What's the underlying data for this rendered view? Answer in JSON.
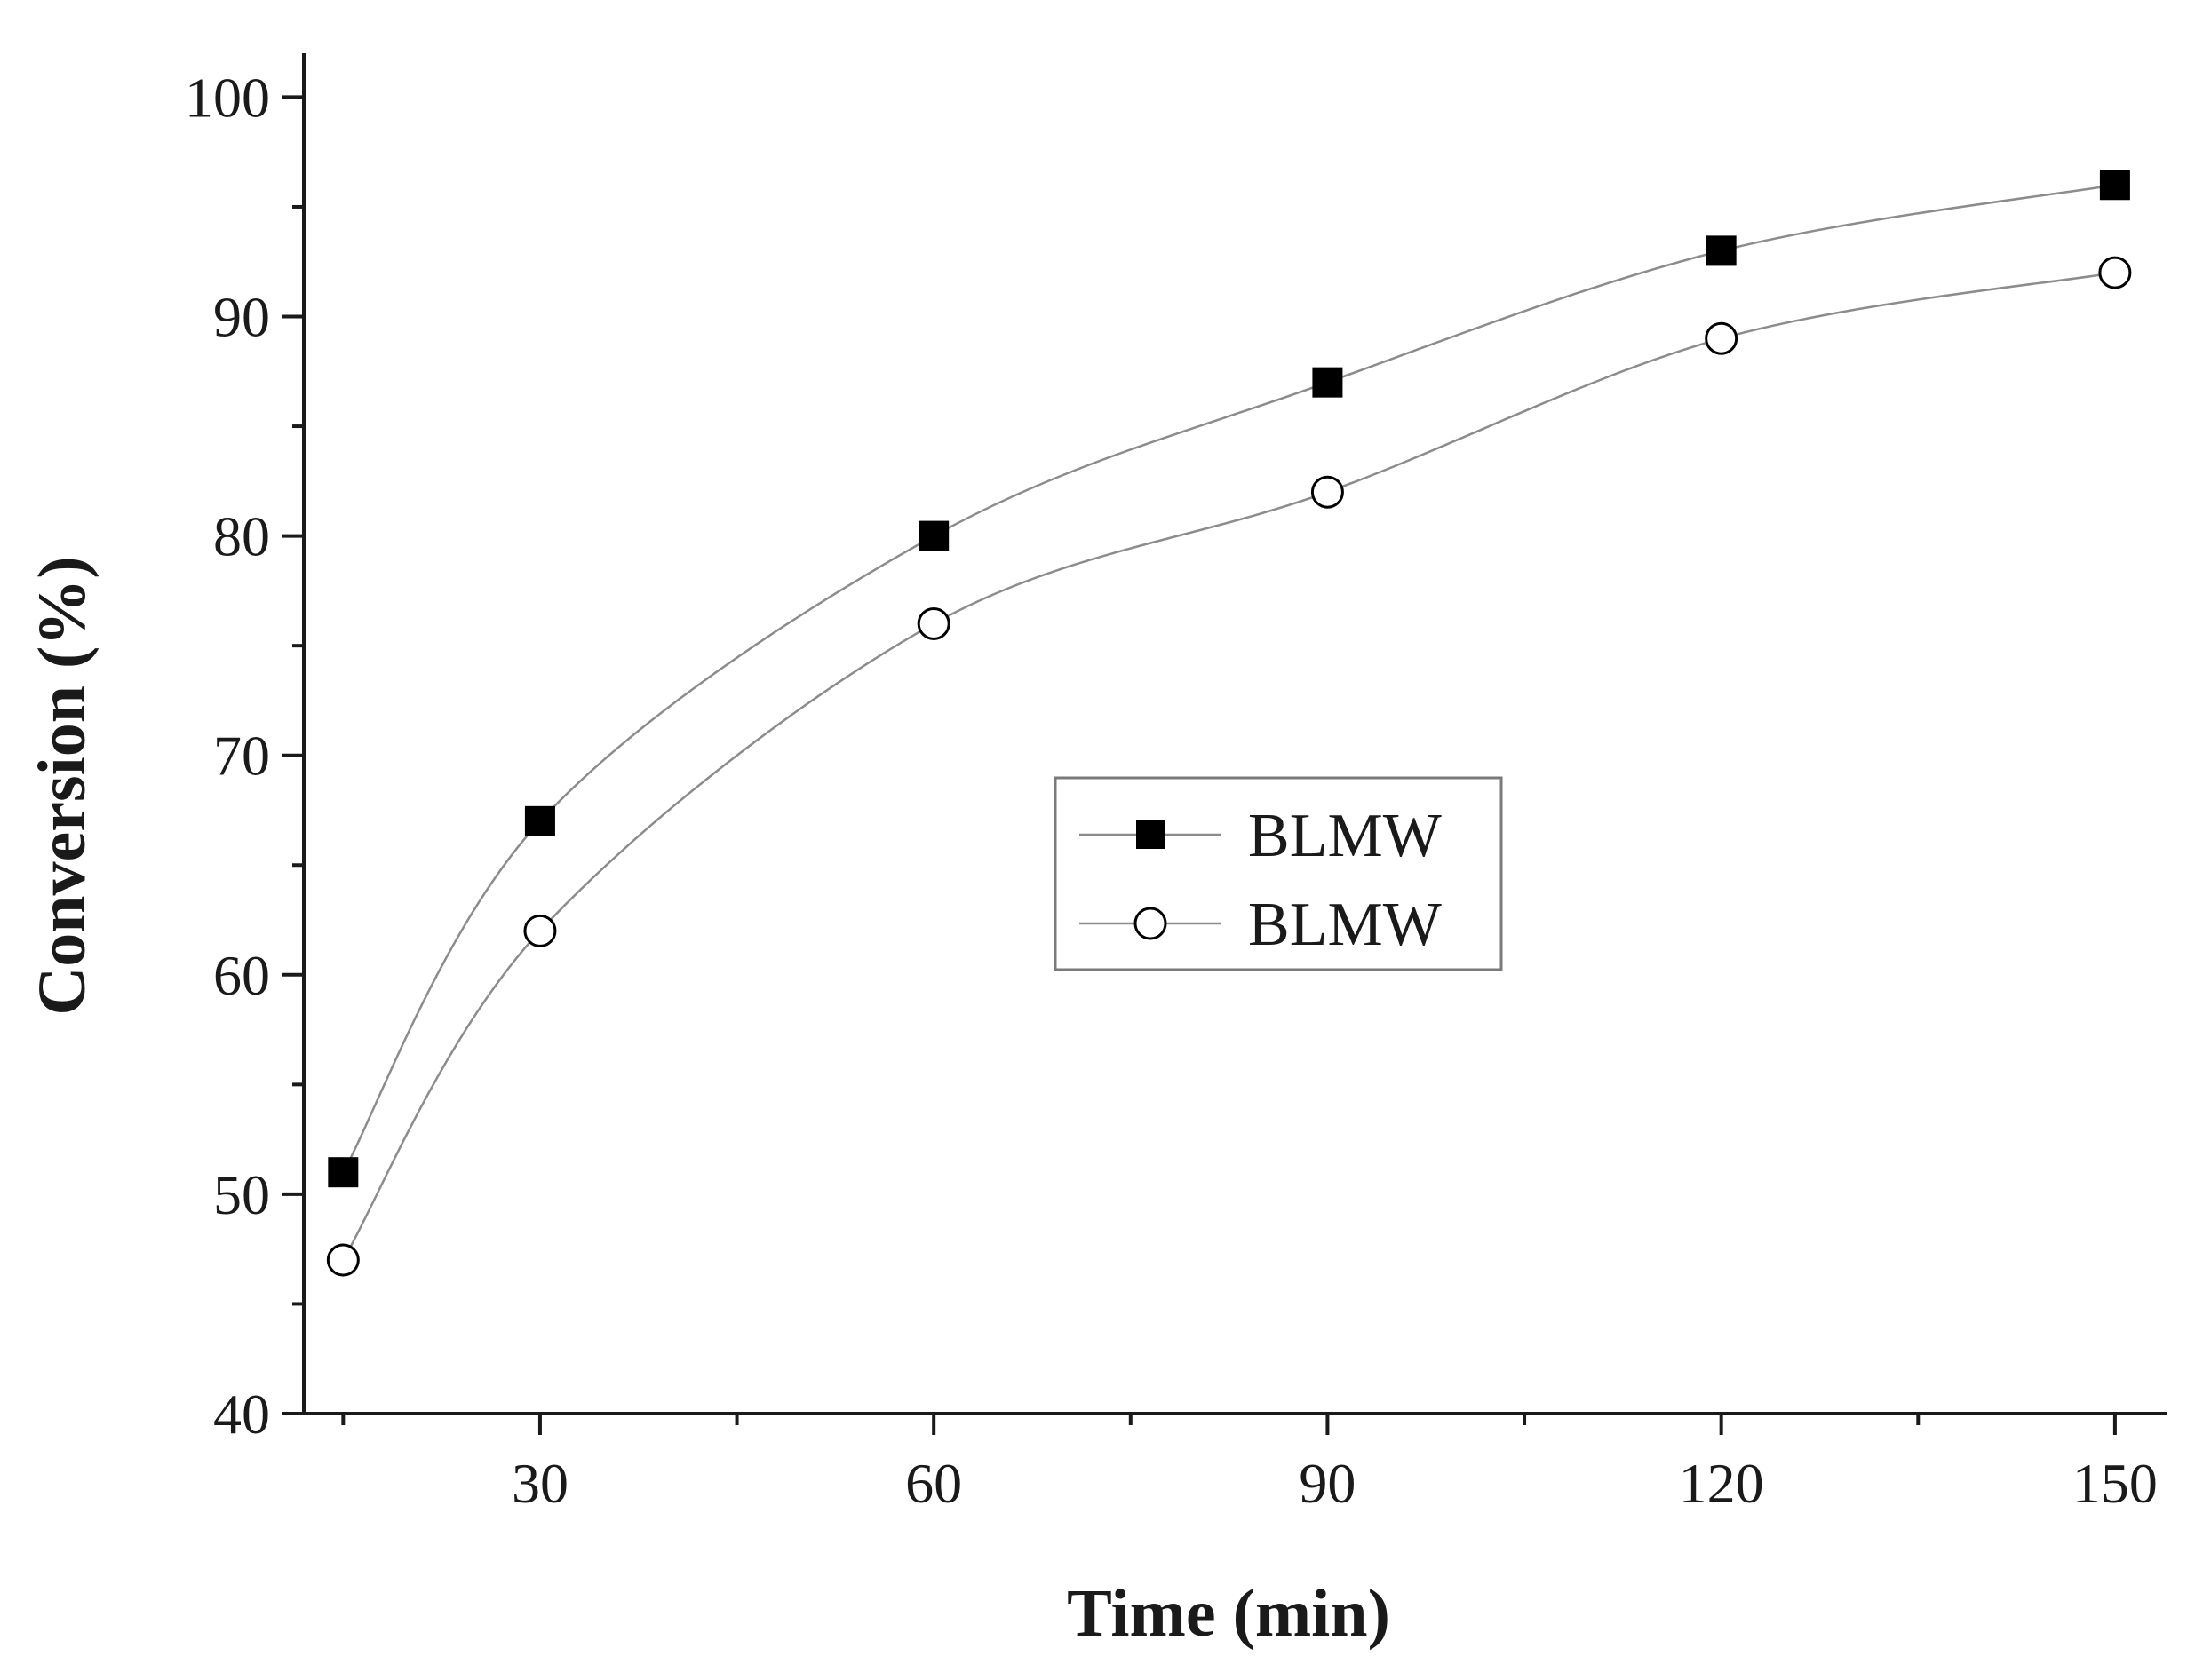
{
  "chart_data": {
    "type": "line",
    "xlabel": "Time (min)",
    "ylabel": "Conversion (%)",
    "xlim": [
      12,
      154
    ],
    "ylim": [
      40,
      102
    ],
    "x_ticks": [
      30,
      60,
      90,
      120,
      150
    ],
    "y_ticks": [
      40,
      50,
      60,
      70,
      80,
      90,
      100
    ],
    "grid": false,
    "legend_position": "center",
    "series": [
      {
        "name": "BLMW",
        "marker": "filled-square",
        "marker_color": "#000000",
        "line_color": "#8c8c8c",
        "x": [
          15,
          30,
          60,
          90,
          120,
          150
        ],
        "y": [
          51,
          67,
          80,
          87,
          93,
          96
        ]
      },
      {
        "name": "BLMW",
        "marker": "open-circle",
        "marker_color": "#000000",
        "line_color": "#8c8c8c",
        "x": [
          15,
          30,
          60,
          90,
          120,
          150
        ],
        "y": [
          47,
          62,
          76,
          82,
          89,
          92
        ]
      }
    ]
  }
}
